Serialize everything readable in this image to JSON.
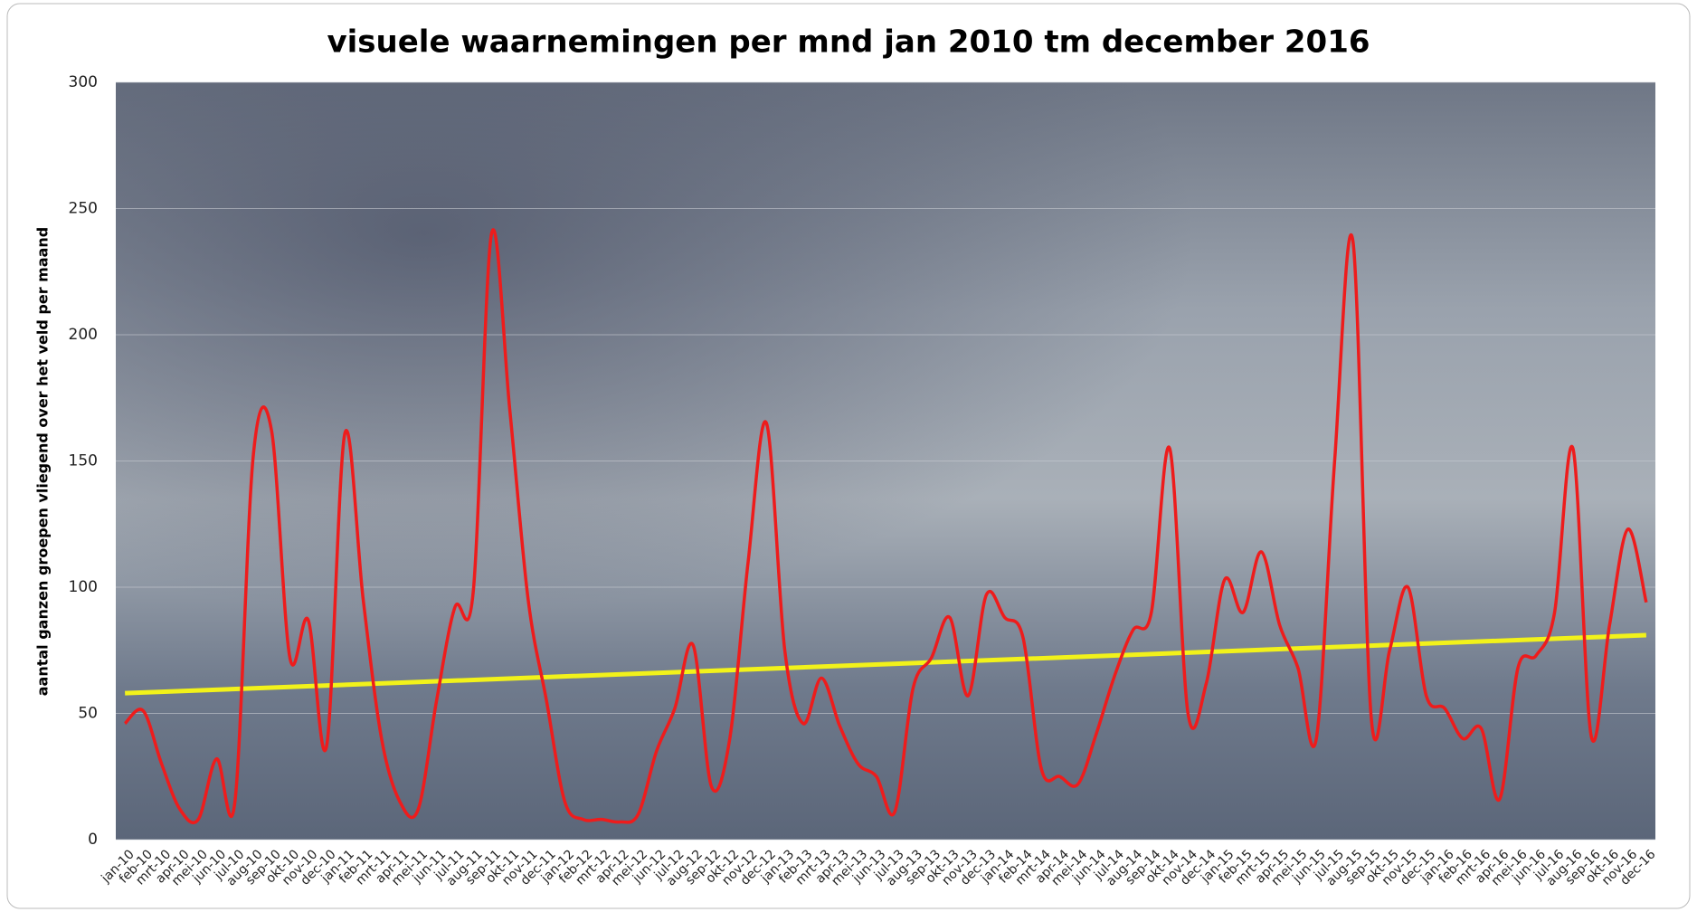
{
  "chart_data": {
    "type": "line",
    "title": "visuele waarnemingen per mnd jan 2010 tm december 2016",
    "y_label": "aantal ganzen groepen vliegend over het veld per maand",
    "categories": [
      "jan-10",
      "feb-10",
      "mrt-10",
      "apr-10",
      "mei-10",
      "jun-10",
      "jul-10",
      "aug-10",
      "sep-10",
      "okt-10",
      "nov-10",
      "dec-10",
      "jan-11",
      "feb-11",
      "mrt-11",
      "apr-11",
      "mei-11",
      "jun-11",
      "jul-11",
      "aug-11",
      "sep-11",
      "okt-11",
      "nov-11",
      "dec-11",
      "jan-12",
      "feb-12",
      "mrt-12",
      "apr-12",
      "mei-12",
      "jun-12",
      "jul-12",
      "aug-12",
      "sep-12",
      "okt-12",
      "nov-12",
      "dec-12",
      "jan-13",
      "feb-13",
      "mrt-13",
      "apr-13",
      "mei-13",
      "jun-13",
      "jul-13",
      "aug-13",
      "sep-13",
      "okt-13",
      "nov-13",
      "dec-13",
      "jan-14",
      "feb-14",
      "mrt-14",
      "apr-14",
      "mei-14",
      "jun-14",
      "jul-14",
      "aug-14",
      "sep-14",
      "okt-14",
      "nov-14",
      "dec-14",
      "jan-15",
      "feb-15",
      "mrt-15",
      "apr-15",
      "mei-15",
      "jun-15",
      "jul-15",
      "aug-15",
      "sep-15",
      "okt-15",
      "nov-15",
      "dec-15",
      "jan-16",
      "feb-16",
      "mrt-16",
      "apr-16",
      "mei-16",
      "jun-16",
      "jul-16",
      "aug-16",
      "sep-16",
      "okt-16",
      "nov-16",
      "dec-16"
    ],
    "series": [
      {
        "color": "#ee1c1c",
        "values": [
          46,
          51,
          30,
          12,
          8,
          32,
          15,
          152,
          162,
          72,
          87,
          37,
          161,
          95,
          40,
          15,
          12,
          55,
          92,
          98,
          240,
          170,
          95,
          55,
          15,
          8,
          8,
          7,
          10,
          35,
          52,
          77,
          21,
          40,
          110,
          165,
          75,
          46,
          64,
          45,
          30,
          25,
          11,
          60,
          72,
          88,
          57,
          97,
          88,
          80,
          28,
          25,
          22,
          42,
          65,
          83,
          90,
          155,
          50,
          62,
          103,
          90,
          114,
          85,
          68,
          40,
          150,
          237,
          48,
          75,
          100,
          57,
          52,
          40,
          44,
          16,
          68,
          73,
          90,
          155,
          41,
          85,
          123,
          94
        ]
      }
    ],
    "trend": {
      "color": "#f2f21a",
      "values": [
        58,
        81
      ]
    },
    "ylim": [
      0,
      300
    ],
    "yticks": [
      0,
      50,
      100,
      150,
      200,
      250,
      300
    ],
    "grid": true
  }
}
